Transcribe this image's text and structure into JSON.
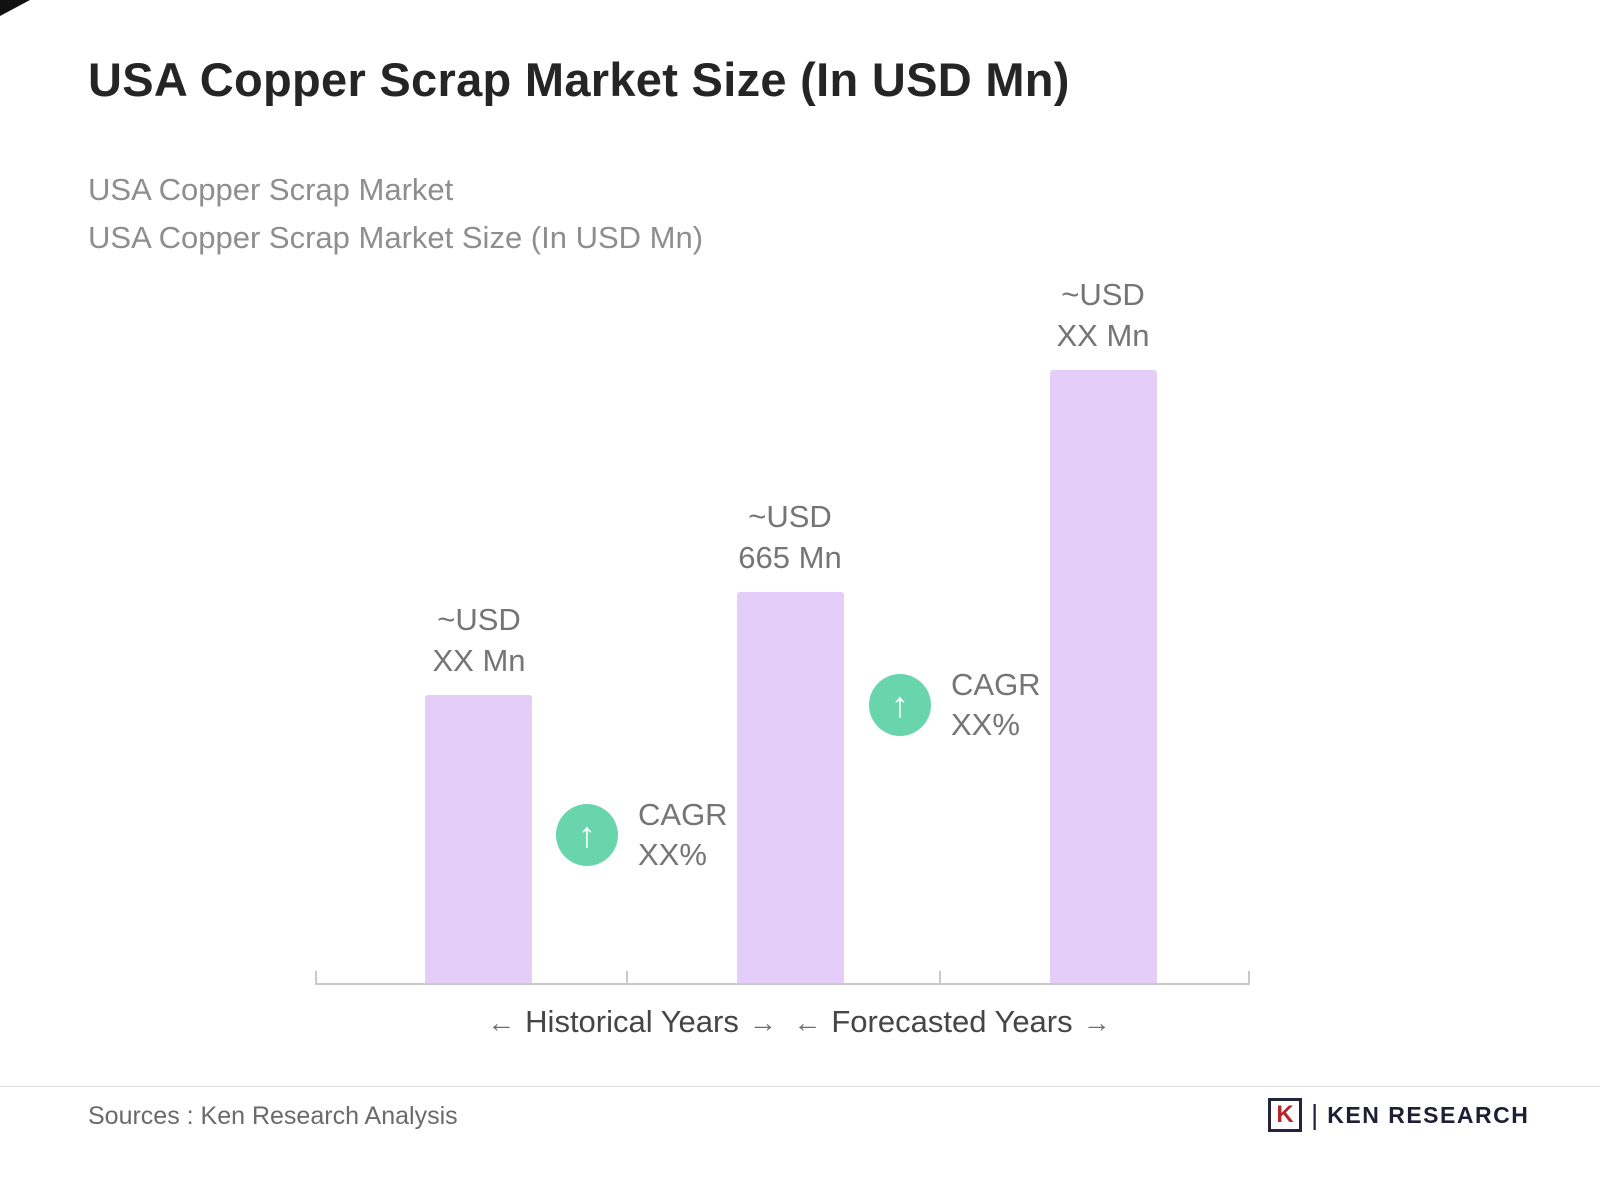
{
  "header": {
    "title": "USA Copper Scrap Market Size (In USD Mn)",
    "subtitle_line1": "USA Copper Scrap Market",
    "subtitle_line2": "USA Copper Scrap Market Size (In USD Mn)"
  },
  "chart_data": {
    "type": "bar",
    "title": "USA Copper Scrap Market Size (In USD Mn)",
    "categories": [
      "Historical Years",
      "Historical Years",
      "Forecasted Years"
    ],
    "values": [
      490,
      665,
      1040
    ],
    "value_labels": [
      "~USD XX Mn",
      "~USD 665 Mn",
      "~USD XX Mn"
    ],
    "ylim": [
      0,
      1040
    ],
    "ylabel": "USD Mn",
    "xlabel": "",
    "grid": false,
    "legend": "none",
    "bar_color": "#E4CDF8",
    "bars": [
      {
        "line1": "~USD",
        "line2": "XX Mn"
      },
      {
        "line1": "~USD",
        "line2": "665  Mn"
      },
      {
        "line1": "~USD",
        "line2": "XX Mn"
      }
    ],
    "annotations": [
      {
        "between": "bar1-bar2",
        "line1": "CAGR",
        "line2": "XX%"
      },
      {
        "between": "bar2-bar3",
        "line1": "CAGR",
        "line2": "XX%"
      }
    ],
    "x_groups": [
      "Historical Years",
      "Forecasted Years"
    ]
  },
  "axis": {
    "historical_label": "Historical Years",
    "forecasted_label": "Forecasted Years"
  },
  "icons": {
    "up_arrow": "↑",
    "arrow_left": "←",
    "arrow_right": "→"
  },
  "footer": {
    "sources": "Sources : Ken Research Analysis",
    "brand": "KEN RESEARCH",
    "brand_icon_letter": "K",
    "brand_separator": "|"
  },
  "colors": {
    "bar": "#E4CDF8",
    "accent_green": "#69D5AC",
    "title_text": "#252525",
    "subtitle_text": "#8E8E8E",
    "axis_line": "#C9C9C9",
    "label_text": "#757575"
  }
}
